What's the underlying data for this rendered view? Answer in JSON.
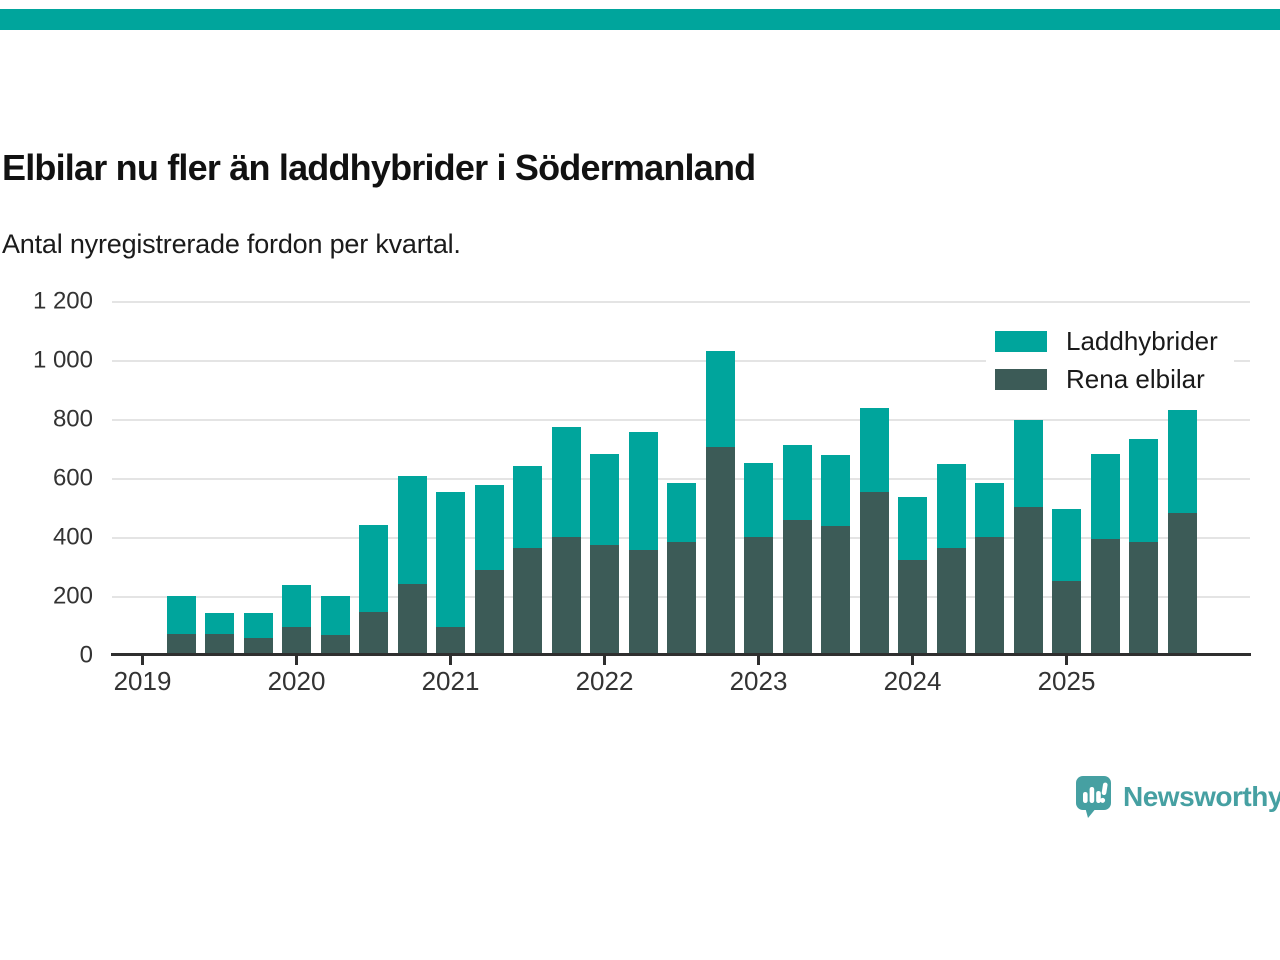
{
  "brand": {
    "top_stripe_color": "#00a59c",
    "logo_text": "Newsworthy",
    "logo_color": "#46a0a2"
  },
  "header": {
    "title": "Elbilar nu fler än laddhybrider i Södermanland",
    "subtitle": "Antal nyregistrerade fordon per kvartal."
  },
  "chart_data": {
    "type": "bar",
    "stacked": true,
    "title": "Elbilar nu fler än laddhybrider i Södermanland",
    "subtitle": "Antal nyregistrerade fordon per kvartal.",
    "grid": true,
    "legend_position": "top-right",
    "ylim": [
      0,
      1200
    ],
    "y_tick_values": [
      0,
      200,
      400,
      600,
      800,
      1000,
      1200
    ],
    "y_tick_labels": [
      "0",
      "200",
      "400",
      "600",
      "800",
      "1 000",
      "1 200"
    ],
    "x_tick_labels": [
      "2019",
      "2020",
      "2021",
      "2022",
      "2023",
      "2024",
      "2025"
    ],
    "categories": [
      "2019 Q2",
      "2019 Q3",
      "2019 Q4",
      "2020 Q1",
      "2020 Q2",
      "2020 Q3",
      "2020 Q4",
      "2021 Q1",
      "2021 Q2",
      "2021 Q3",
      "2021 Q4",
      "2022 Q1",
      "2022 Q2",
      "2022 Q3",
      "2022 Q4",
      "2023 Q1",
      "2023 Q2",
      "2023 Q3",
      "2023 Q4",
      "2024 Q1",
      "2024 Q2",
      "2024 Q3",
      "2024 Q4",
      "2025 Q1",
      "2025 Q2",
      "2025 Q3",
      "2025 Q4"
    ],
    "series": [
      {
        "name": "Laddhybrider",
        "color": "#00a59c",
        "values": [
          130,
          70,
          85,
          140,
          135,
          295,
          365,
          455,
          290,
          280,
          370,
          310,
          400,
          200,
          325,
          250,
          255,
          240,
          285,
          215,
          285,
          180,
          295,
          245,
          290,
          350,
          350
        ]
      },
      {
        "name": "Rena elbilar",
        "color": "#3c5b57",
        "values": [
          75,
          75,
          60,
          100,
          70,
          150,
          245,
          100,
          290,
          365,
          405,
          375,
          360,
          385,
          710,
          405,
          460,
          440,
          555,
          325,
          365,
          405,
          505,
          255,
          395,
          385,
          485
        ]
      }
    ],
    "totals": [
      205,
      145,
      145,
      240,
      205,
      445,
      610,
      555,
      580,
      645,
      775,
      685,
      760,
      585,
      1035,
      655,
      715,
      680,
      840,
      540,
      650,
      585,
      800,
      500,
      685,
      735,
      835
    ]
  }
}
